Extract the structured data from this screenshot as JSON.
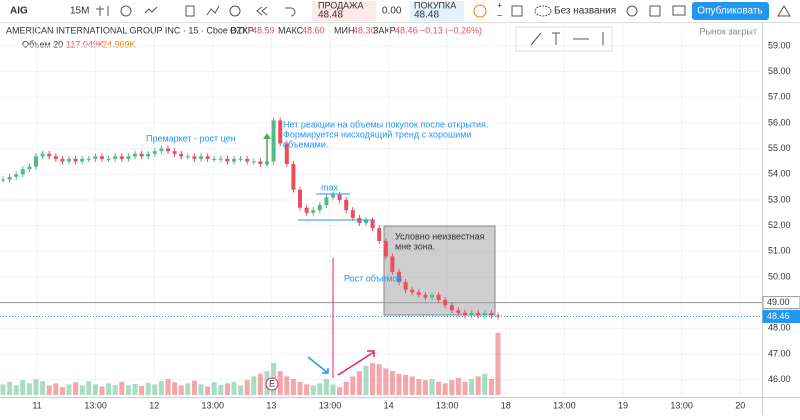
{
  "toolbar": {
    "symbol": "AIG",
    "interval": "15M",
    "sell_label": "ПРОДАЖА",
    "sell_price": "48.48",
    "spread": "0.00",
    "buy_label": "ПОКУПКА",
    "buy_price": "48.48",
    "layout_name": "Без названия",
    "publish": "Опубликовать"
  },
  "legend": {
    "title": "AMERICAN INTERNATIONAL GROUP INC · 15 · Cboe BZX",
    "open_label": "ОТКР",
    "open": "48.59",
    "high_label": "МАКС",
    "high": "48.60",
    "low_label": "МИН",
    "low": "48.30",
    "close_label": "ЗАКР",
    "close": "48.46",
    "change": "−0.13 (−0.26%)",
    "volume_title": "Объем 20",
    "volume": "117.049K",
    "volume_ma": "24.969K",
    "market_status": "Рынок закрыт"
  },
  "annotations": {
    "premarket": "Премаркет - рост цен",
    "no_reaction": [
      "Нет реакции на объемы покупок после открытия.",
      "Формируется нисходящий тренд с хорошими",
      "объемами."
    ],
    "max": "max",
    "volume_growth": "Рост объемов",
    "unknown_zone": [
      "Условно неизвестная",
      "мне зона."
    ],
    "earnings": "E"
  },
  "chart": {
    "type": "candlestick",
    "up_color": "#53b987",
    "down_color": "#eb4d5c",
    "close": [
      53.8,
      53.9,
      54.0,
      54.2,
      54.3,
      54.7,
      54.8,
      54.7,
      54.6,
      54.5,
      54.6,
      54.5,
      54.6,
      54.6,
      54.7,
      54.6,
      54.6,
      54.7,
      54.6,
      54.7,
      54.8,
      54.7,
      54.8,
      54.9,
      55.0,
      54.9,
      54.8,
      54.7,
      54.7,
      54.6,
      54.7,
      54.6,
      54.6,
      54.6,
      54.5,
      54.6,
      54.6,
      54.5,
      54.5,
      54.4,
      54.5,
      56.1,
      55.2,
      54.4,
      53.4,
      52.7,
      52.5,
      52.6,
      52.8,
      53.1,
      53.2,
      53.0,
      52.6,
      52.3,
      52.1,
      52.2,
      51.9,
      51.4,
      50.8,
      50.2,
      49.8,
      49.5,
      49.4,
      49.3,
      49.2,
      49.3,
      49.1,
      48.9,
      48.7,
      48.6,
      48.5,
      48.6,
      48.5,
      48.6,
      48.5,
      48.46
    ],
    "volume": [
      20,
      25,
      18,
      28,
      22,
      30,
      26,
      18,
      22,
      15,
      20,
      24,
      18,
      26,
      20,
      16,
      22,
      19,
      25,
      18,
      21,
      17,
      23,
      20,
      26,
      30,
      24,
      18,
      22,
      27,
      20,
      16,
      24,
      19,
      22,
      25,
      18,
      28,
      35,
      40,
      45,
      60,
      45,
      35,
      30,
      25,
      20,
      18,
      22,
      30,
      20,
      15,
      25,
      35,
      45,
      55,
      60,
      58,
      50,
      45,
      40,
      38,
      35,
      30,
      28,
      30,
      25,
      22,
      28,
      32,
      25,
      30,
      35,
      40,
      30,
      117.049
    ],
    "ylim": [
      45.4,
      59.7
    ],
    "vlim": [
      0,
      160
    ],
    "yticks": [
      {
        "value": 46,
        "label": "46.00"
      },
      {
        "value": 47,
        "label": "47.00"
      },
      {
        "value": 48,
        "label": "48.00"
      },
      {
        "value": 49,
        "label": "49.00"
      },
      {
        "value": 50,
        "label": "50.00"
      },
      {
        "value": 51,
        "label": "51.00"
      },
      {
        "value": 52,
        "label": "52.00"
      },
      {
        "value": 53,
        "label": "53.00"
      },
      {
        "value": 54,
        "label": "54.00"
      },
      {
        "value": 55,
        "label": "55.00"
      },
      {
        "value": 56,
        "label": "56.00"
      },
      {
        "value": 57,
        "label": "57.00"
      },
      {
        "value": 58,
        "label": "58.00"
      },
      {
        "value": 59,
        "label": "59.00"
      }
    ],
    "price_marks": [
      {
        "value": 49,
        "label": "49.00"
      },
      {
        "value": 48.46,
        "label": "48.46"
      }
    ],
    "x_labels": [
      "11",
      "13:00",
      "12",
      "13:00",
      "13",
      "13:00",
      "14",
      "13:00",
      "18",
      "13:00",
      "19",
      "13:00",
      "20"
    ]
  }
}
